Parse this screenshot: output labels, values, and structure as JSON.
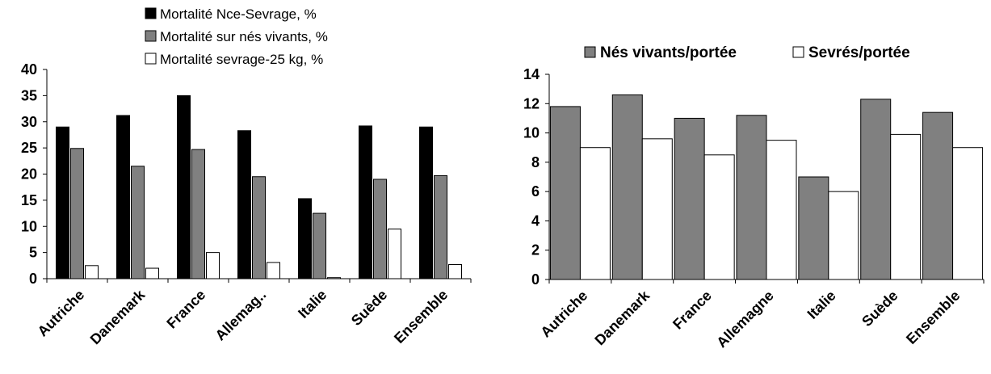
{
  "colors": {
    "black": "#000000",
    "gray": "#808080",
    "white": "#ffffff",
    "axis": "#000000"
  },
  "chart_data": [
    {
      "type": "bar",
      "categories": [
        "Autriche",
        "Danemark",
        "France",
        "Allemag..",
        "Italie",
        "Suède",
        "Ensemble"
      ],
      "series": [
        {
          "name": "Mortalité Nce-Sevrage, %",
          "color": "#000000",
          "values": [
            29,
            31.2,
            35,
            28.3,
            15.3,
            29.2,
            29
          ]
        },
        {
          "name": "Mortalité sur nés vivants, %",
          "color": "#808080",
          "values": [
            24.9,
            21.5,
            24.7,
            19.5,
            12.5,
            19,
            19.7
          ]
        },
        {
          "name": "Mortalité sevrage-25 kg, %",
          "color": "#ffffff",
          "values": [
            2.5,
            2,
            5,
            3.1,
            0.2,
            9.5,
            2.7
          ]
        }
      ],
      "yticks": [
        "0",
        "5",
        "10",
        "15",
        "20",
        "25",
        "30",
        "35",
        "40"
      ],
      "ylim": [
        0,
        40
      ],
      "grid": false,
      "legend": "top"
    },
    {
      "type": "bar",
      "categories": [
        "Autriche",
        "Danemark",
        "France",
        "Allemagne",
        "Italie",
        "Suède",
        "Ensemble"
      ],
      "series": [
        {
          "name": "Nés vivants/portée",
          "color": "#808080",
          "values": [
            11.8,
            12.6,
            11,
            11.2,
            7,
            12.3,
            11.4
          ]
        },
        {
          "name": "Sevrés/portée",
          "color": "#ffffff",
          "values": [
            9,
            9.6,
            8.5,
            9.5,
            6,
            9.9,
            9
          ]
        }
      ],
      "yticks": [
        "0",
        "2",
        "4",
        "6",
        "8",
        "10",
        "12",
        "14"
      ],
      "ylim": [
        0,
        14
      ],
      "grid": false,
      "legend": "top"
    }
  ]
}
